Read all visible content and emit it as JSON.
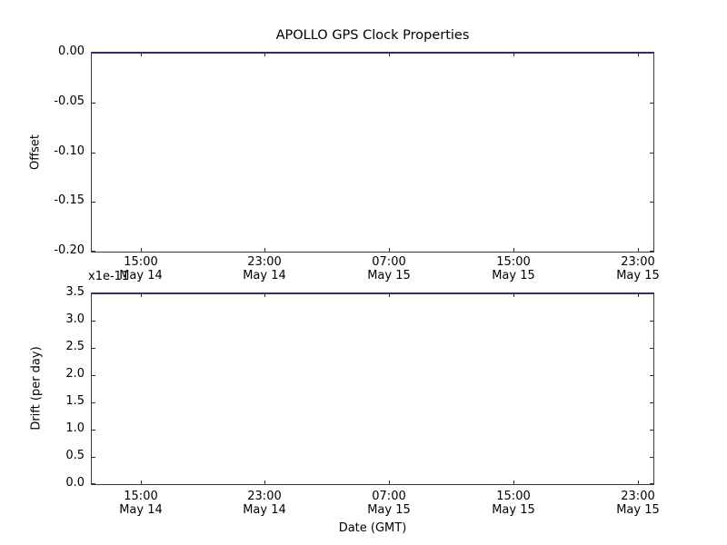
{
  "title": "APOLLO GPS Clock Properties",
  "colors": {
    "series_line": "#30306b",
    "spine": "#3a3a3a",
    "text": "#000000",
    "background": "#ffffff"
  },
  "top_plot": {
    "ylabel": "Offset",
    "yticks": [
      "0.00",
      "-0.05",
      "-0.10",
      "-0.15",
      "-0.20"
    ]
  },
  "bottom_plot": {
    "ylabel": "Drift (per day)",
    "offset_text": "x1e-11",
    "yticks": [
      "3.5",
      "3.0",
      "2.5",
      "2.0",
      "1.5",
      "1.0",
      "0.5",
      "0.0"
    ]
  },
  "x_axis": {
    "label": "Date (GMT)",
    "tick_labels": [
      {
        "time": "15:00",
        "date": "May 14"
      },
      {
        "time": "23:00",
        "date": "May 14"
      },
      {
        "time": "07:00",
        "date": "May 15"
      },
      {
        "time": "15:00",
        "date": "May 15"
      },
      {
        "time": "23:00",
        "date": "May 15"
      }
    ]
  },
  "chart_data": [
    {
      "type": "line",
      "title": "APOLLO GPS Clock Properties",
      "ylabel": "Offset",
      "ylim": [
        -0.2,
        0.0
      ],
      "ytick_values": [
        0.0,
        -0.05,
        -0.1,
        -0.15,
        -0.2
      ],
      "x_tick_labels": [
        "15:00 May 14",
        "23:00 May 14",
        "07:00 May 15",
        "15:00 May 15",
        "23:00 May 15"
      ],
      "grid": false,
      "legend": "none",
      "series": [
        {
          "name": "offset",
          "color": "#0000ff",
          "y_constant": 0.0,
          "note": "flat line at 0.00 spanning entire x range, drawn along top axis spine"
        }
      ]
    },
    {
      "type": "line",
      "ylabel": "Drift (per day)",
      "xlabel": "Date (GMT)",
      "y_multiplier": "1e-11",
      "ylim": [
        0.0,
        3.5e-11
      ],
      "ytick_values": [
        3.5,
        3.0,
        2.5,
        2.0,
        1.5,
        1.0,
        0.5,
        0.0
      ],
      "x_tick_labels": [
        "15:00 May 14",
        "23:00 May 14",
        "07:00 May 15",
        "15:00 May 15",
        "23:00 May 15"
      ],
      "grid": false,
      "legend": "none",
      "series": [
        {
          "name": "drift",
          "color": "#0000ff",
          "y_constant": 3.5e-11,
          "note": "flat line at 3.5e-11 spanning entire x range, drawn along top axis spine"
        }
      ]
    }
  ]
}
